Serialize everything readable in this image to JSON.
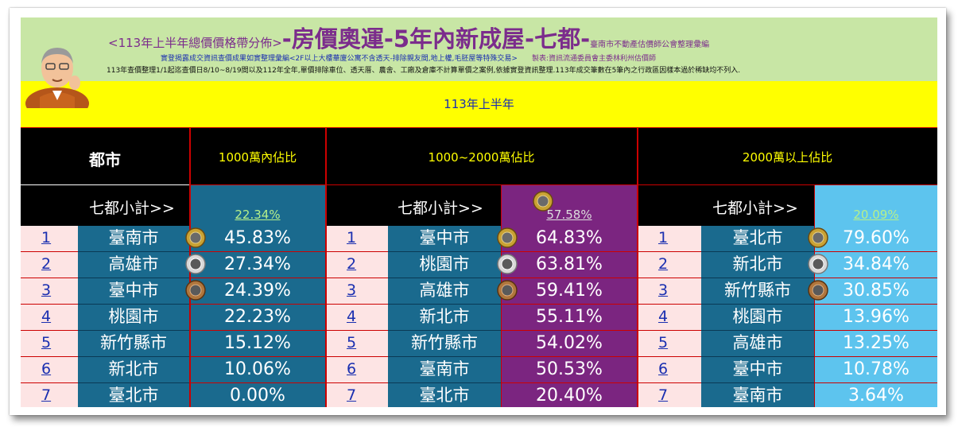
{
  "header": {
    "title_prefix": "<113年上半年總價價格帶分佈>",
    "title_main": "-房價奧運-5年內新成屋-七都-",
    "title_org": "臺南市不動產估價師公會整理彙編",
    "subtitle_source": "實登揭露成交資訊查價成果如實整理彙編<2F以上大樓華廈公寓不含透天-排除親友間,地上權,毛胚屋等特殊交易>",
    "subtitle_maker": "製表:資訊流通委員會主委林利州估價師",
    "note": "113年查價整理1/1起迄查價日8/10~8/19間以及112年全年,單價排除車位、透天厝、農舍、工廠及倉庫不計算單價之案例,依據實登資訊整理.113年成交筆數在5筆內之行政區因樣本過於稀缺均不列入."
  },
  "period": "113年上半年",
  "city_header": "都市",
  "subtotal_label": "七都小計>>",
  "colors": {
    "col1_pct": "#1a6a8e",
    "col2_pct": "#7b2580",
    "col3_pct": "#5dc4ee",
    "city_cell": "#1a6a8e"
  },
  "groups": [
    {
      "header": "1000萬內佔比",
      "subtotal": "22.34%",
      "rows": [
        {
          "rank": "1",
          "city": "臺南市",
          "pct": "45.83%",
          "medal": "gold-medal-icon"
        },
        {
          "rank": "2",
          "city": "高雄市",
          "pct": "27.34%",
          "medal": "silver-medal-icon"
        },
        {
          "rank": "3",
          "city": "臺中市",
          "pct": "24.39%",
          "medal": "bronze-medal-icon"
        },
        {
          "rank": "4",
          "city": "桃園市",
          "pct": "22.23%"
        },
        {
          "rank": "5",
          "city": "新竹縣市",
          "pct": "15.12%"
        },
        {
          "rank": "6",
          "city": "新北市",
          "pct": "10.06%"
        },
        {
          "rank": "7",
          "city": "臺北市",
          "pct": "0.00%"
        }
      ]
    },
    {
      "header": "1000~2000萬佔比",
      "subtotal": "57.58%",
      "rows": [
        {
          "rank": "1",
          "city": "臺中市",
          "pct": "64.83%",
          "medal": "gold-medal-icon"
        },
        {
          "rank": "2",
          "city": "桃園市",
          "pct": "63.81%",
          "medal": "silver-medal-icon"
        },
        {
          "rank": "3",
          "city": "高雄市",
          "pct": "59.41%",
          "medal": "bronze-medal-icon"
        },
        {
          "rank": "4",
          "city": "新北市",
          "pct": "55.11%"
        },
        {
          "rank": "5",
          "city": "新竹縣市",
          "pct": "54.02%"
        },
        {
          "rank": "6",
          "city": "臺南市",
          "pct": "50.53%"
        },
        {
          "rank": "7",
          "city": "臺北市",
          "pct": "20.40%"
        }
      ]
    },
    {
      "header": "2000萬以上佔比",
      "subtotal": "20.09%",
      "rows": [
        {
          "rank": "1",
          "city": "臺北市",
          "pct": "79.60%",
          "medal": "gold-medal-icon"
        },
        {
          "rank": "2",
          "city": "新北市",
          "pct": "34.84%",
          "medal": "silver-medal-icon"
        },
        {
          "rank": "3",
          "city": "新竹縣市",
          "pct": "30.85%",
          "medal": "bronze-medal-icon"
        },
        {
          "rank": "4",
          "city": "桃園市",
          "pct": "13.96%"
        },
        {
          "rank": "5",
          "city": "高雄市",
          "pct": "13.25%"
        },
        {
          "rank": "6",
          "city": "臺中市",
          "pct": "10.78%"
        },
        {
          "rank": "7",
          "city": "臺南市",
          "pct": "3.64%"
        }
      ]
    }
  ]
}
